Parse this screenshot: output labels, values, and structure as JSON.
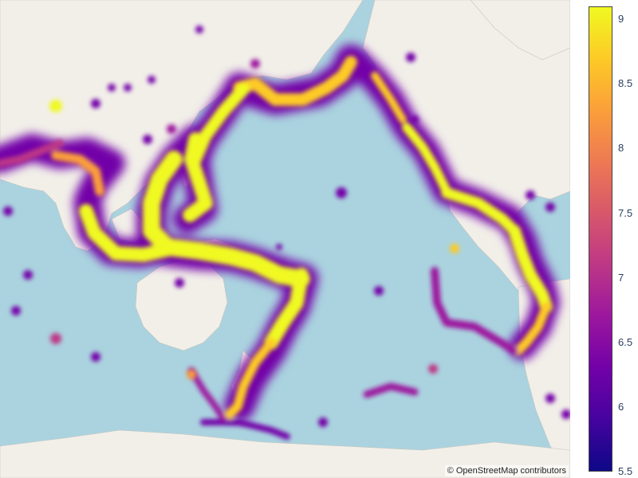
{
  "map": {
    "type": "density-heatmap",
    "basemap": "OpenStreetMap",
    "attribution": "© OpenStreetMap contributors",
    "colorscale": [
      "#0d0887",
      "#46039f",
      "#7201a8",
      "#9c179e",
      "#bd3786",
      "#d8576b",
      "#ed7953",
      "#fb9f3a",
      "#fdca26",
      "#f0f921"
    ],
    "land_color": "#f2efe9",
    "water_color": "#aad3df"
  },
  "colorbar": {
    "min": 5.5,
    "max": 9.1,
    "ticks": [
      "9",
      "8.5",
      "8",
      "7.5",
      "7",
      "6.5",
      "6",
      "5.5"
    ]
  }
}
